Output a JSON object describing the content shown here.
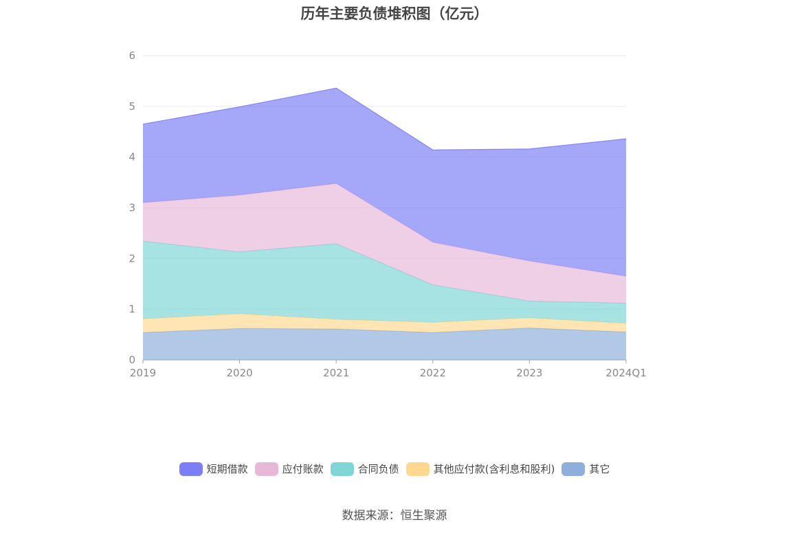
{
  "chart_data": {
    "type": "area",
    "title": "历年主要负债堆积图（亿元）",
    "categories": [
      "2019",
      "2020",
      "2021",
      "2022",
      "2023",
      "2024Q1"
    ],
    "ylim": [
      0,
      6
    ],
    "yticks": [
      "0",
      "1",
      "2",
      "3",
      "4",
      "5",
      "6"
    ],
    "stacked": true,
    "grid": true,
    "legend_position": "bottom",
    "series": [
      {
        "name": "其它",
        "color": "#8eaedc",
        "values": [
          0.54,
          0.62,
          0.61,
          0.54,
          0.63,
          0.55
        ]
      },
      {
        "name": "其他应付款(含利息和股利)",
        "color": "#ffd88f",
        "values": [
          0.27,
          0.29,
          0.19,
          0.2,
          0.2,
          0.17
        ]
      },
      {
        "name": "合同负债",
        "color": "#7fd6d5",
        "values": [
          1.53,
          1.22,
          1.49,
          0.74,
          0.33,
          0.4
        ]
      },
      {
        "name": "应付账款",
        "color": "#e8b8d9",
        "values": [
          0.76,
          1.12,
          1.19,
          0.84,
          0.79,
          0.53
        ]
      },
      {
        "name": "短期借款",
        "color": "#7b7ef5",
        "values": [
          1.55,
          1.74,
          1.88,
          1.82,
          2.21,
          2.71
        ]
      }
    ]
  },
  "legend_order": [
    "短期借款",
    "应付账款",
    "合同负债",
    "其他应付款(含利息和股利)",
    "其它"
  ],
  "source_text": "数据来源：恒生聚源"
}
